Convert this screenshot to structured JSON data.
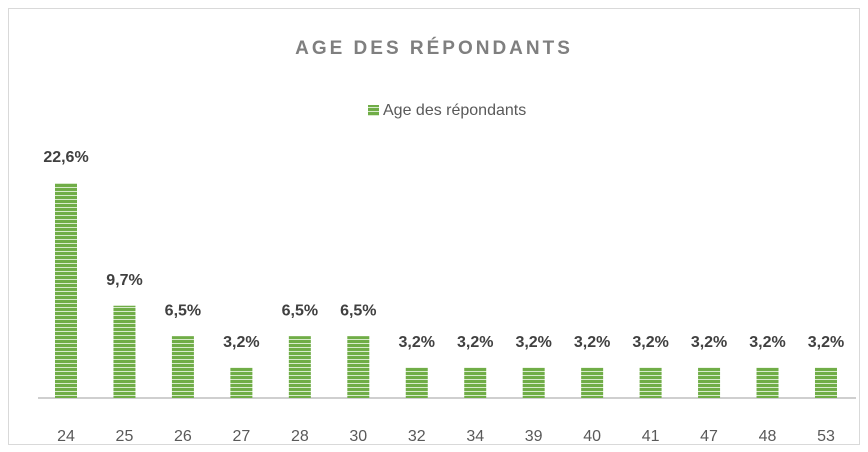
{
  "chart_data": {
    "type": "bar",
    "title": "AGE DES RÉPONDANTS",
    "categories": [
      "24",
      "25",
      "26",
      "27",
      "28",
      "30",
      "32",
      "34",
      "39",
      "40",
      "41",
      "47",
      "48",
      "53"
    ],
    "series": [
      {
        "name": "Age des répondants",
        "color": "#70ad47",
        "values": [
          22.6,
          9.7,
          6.5,
          3.2,
          6.5,
          6.5,
          3.2,
          3.2,
          3.2,
          3.2,
          3.2,
          3.2,
          3.2,
          3.2
        ],
        "value_labels": [
          "22,6%",
          "9,7%",
          "6,5%",
          "3,2%",
          "6,5%",
          "6,5%",
          "3,2%",
          "3,2%",
          "3,2%",
          "3,2%",
          "3,2%",
          "3,2%",
          "3,2%",
          "3,2%"
        ]
      }
    ]
  }
}
